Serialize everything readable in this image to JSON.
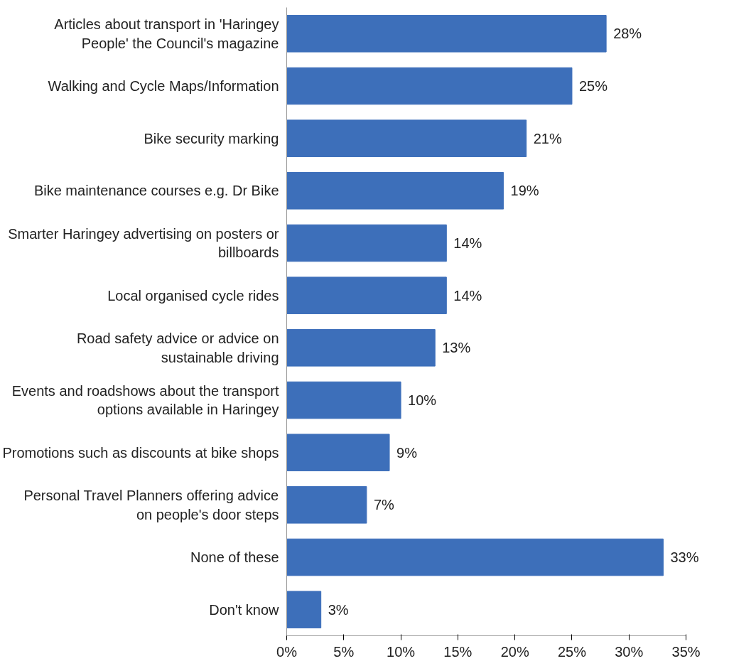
{
  "chart_data": {
    "type": "bar",
    "orientation": "horizontal",
    "categories": [
      "Articles about transport in 'Haringey People' the Council's magazine",
      "Walking and Cycle Maps/Information",
      "Bike security marking",
      "Bike maintenance courses e.g. Dr Bike",
      "Smarter Haringey advertising on posters or billboards",
      "Local organised cycle rides",
      "Road safety advice or advice on sustainable driving",
      "Events and roadshows about the transport options available in Haringey",
      "Promotions such as discounts at bike shops",
      "Personal Travel Planners offering advice on people's door steps",
      "None of these",
      "Don't know"
    ],
    "values": [
      28,
      25,
      21,
      19,
      14,
      14,
      13,
      10,
      9,
      7,
      33,
      3
    ],
    "value_labels": [
      "28%",
      "25%",
      "21%",
      "19%",
      "14%",
      "14%",
      "13%",
      "10%",
      "9%",
      "7%",
      "33%",
      "3%"
    ],
    "color": "#3d6fba",
    "xlim": [
      0,
      35
    ],
    "xticks": [
      {
        "value": 0,
        "label": "0%"
      },
      {
        "value": 5,
        "label": "5%"
      },
      {
        "value": 10,
        "label": "10%"
      },
      {
        "value": 15,
        "label": "15%"
      },
      {
        "value": 20,
        "label": "20%"
      },
      {
        "value": 25,
        "label": "25%"
      },
      {
        "value": 30,
        "label": "30%"
      },
      {
        "value": 35,
        "label": "35%"
      }
    ],
    "grid": false
  }
}
